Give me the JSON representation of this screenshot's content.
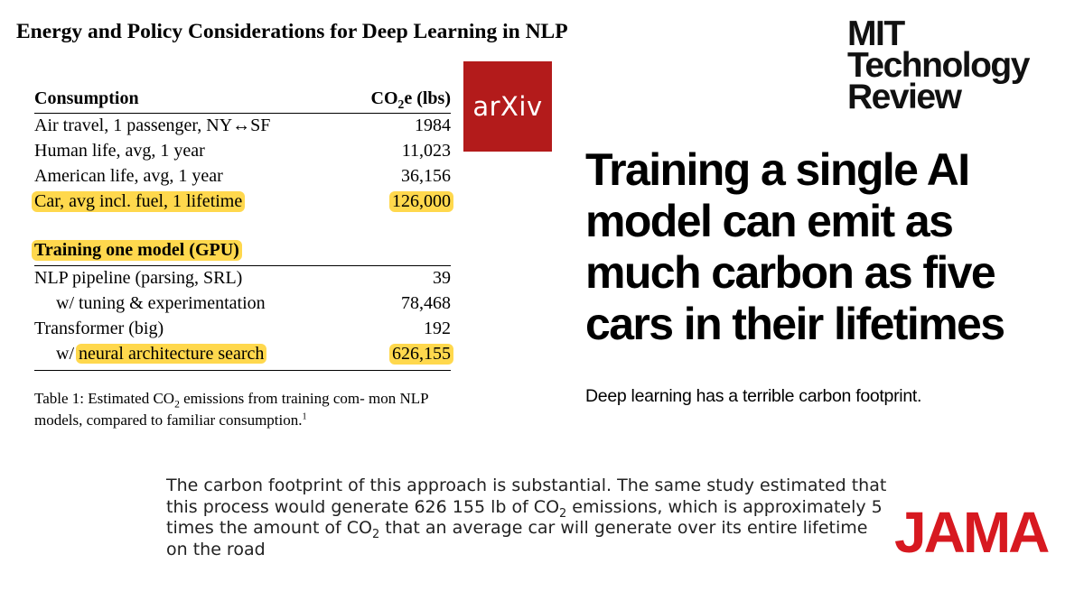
{
  "paper": {
    "title": "Energy and Policy Considerations for Deep Learning in NLP"
  },
  "table": {
    "header": {
      "label": "Consumption",
      "value_prefix": "CO",
      "value_sub": "2",
      "value_suffix": "e (lbs)"
    },
    "consumption_rows": [
      {
        "label": "Air travel, 1 passenger, NY↔SF",
        "value": "1984",
        "highlighted": false
      },
      {
        "label": "Human life, avg, 1 year",
        "value": "11,023",
        "highlighted": false
      },
      {
        "label": "American life, avg, 1 year",
        "value": "36,156",
        "highlighted": false
      },
      {
        "label": "Car, avg incl. fuel, 1 lifetime",
        "value": "126,000",
        "highlighted": true
      }
    ],
    "training_header": "Training one model (GPU)",
    "training_rows": [
      {
        "label": "NLP pipeline (parsing, SRL)",
        "value": "39",
        "indent": false
      },
      {
        "label": "w/ tuning & experimentation",
        "value": "78,468",
        "indent": true
      },
      {
        "label": "Transformer (big)",
        "value": "192",
        "indent": false
      },
      {
        "label_prefix": "w/ ",
        "label": "neural architecture search",
        "value": "626,155",
        "indent": true,
        "highlighted": true
      }
    ],
    "caption": {
      "part1": "Table 1: Estimated CO",
      "sub": "2",
      "part2": " emissions from training com- mon NLP models, compared to familiar consumption.",
      "footnote": "1"
    }
  },
  "arxiv_logo": {
    "text": "arXiv",
    "color": "#b31b1b"
  },
  "mit_logo": {
    "lines": [
      "MIT",
      "Technology",
      "Review"
    ]
  },
  "headline": {
    "text": "Training a single AI model can emit as much carbon as five cars in their lifetimes",
    "dek": "Deep learning has a terrible carbon footprint."
  },
  "jama": {
    "quote_part1": "The carbon footprint of this approach is substantial. The same study estimated that this process would generate 626 155 lb of CO",
    "quote_sub1": "2",
    "quote_part2": " emissions, which is approximately 5 times the amount of CO",
    "quote_sub2": "2",
    "quote_part3": " that an average car will generate over its entire lifetime on the road",
    "logo": "JAMA",
    "logo_color": "#d71920"
  },
  "colors": {
    "highlight": "#ffd84d"
  }
}
